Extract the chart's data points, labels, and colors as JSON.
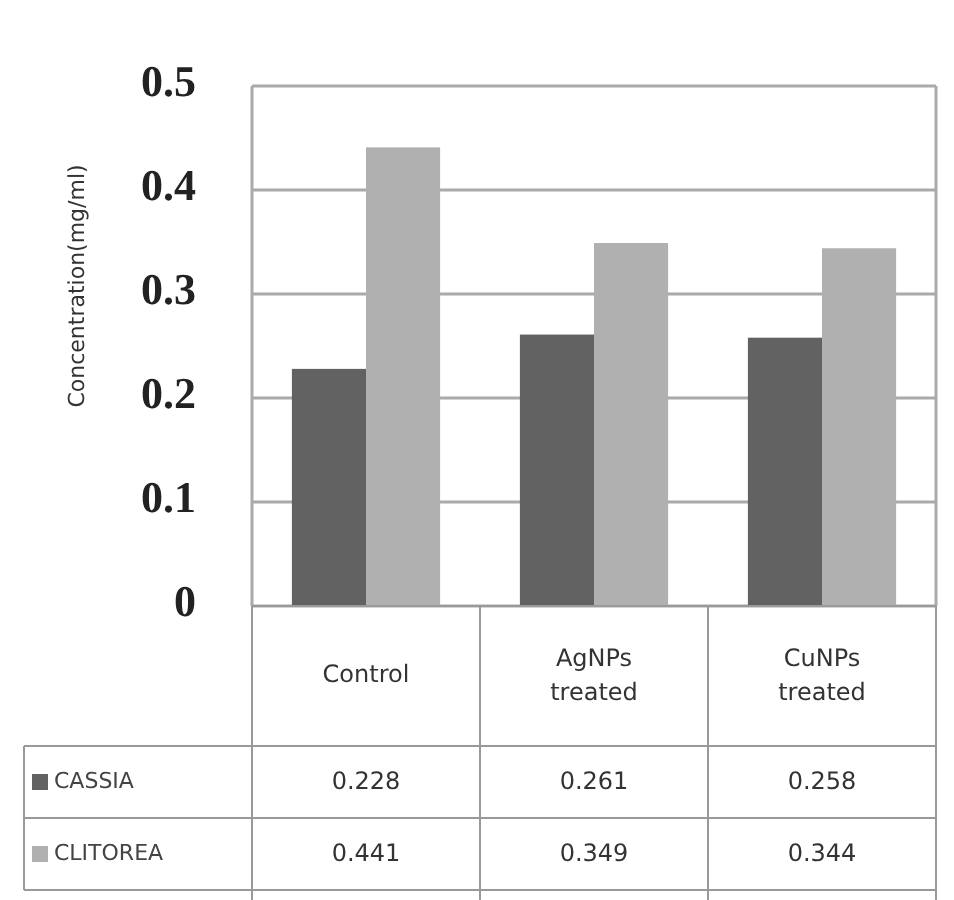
{
  "chart_data": {
    "type": "bar",
    "ylabel": "Concentration(mg/ml)",
    "categories": [
      "Control",
      "AgNPs treated",
      "CuNPs treated"
    ],
    "series": [
      {
        "name": "CASSIA",
        "color": "#626262",
        "values": [
          0.228,
          0.261,
          0.258
        ]
      },
      {
        "name": "CLITOREA",
        "color": "#b0b0b0",
        "values": [
          0.441,
          0.349,
          0.344
        ]
      }
    ],
    "ylim": [
      0,
      0.5
    ],
    "yticks": [
      0,
      0.1,
      0.2,
      0.3,
      0.4,
      0.5
    ],
    "grid": "y",
    "legend": "bottom",
    "data_labels": true
  }
}
